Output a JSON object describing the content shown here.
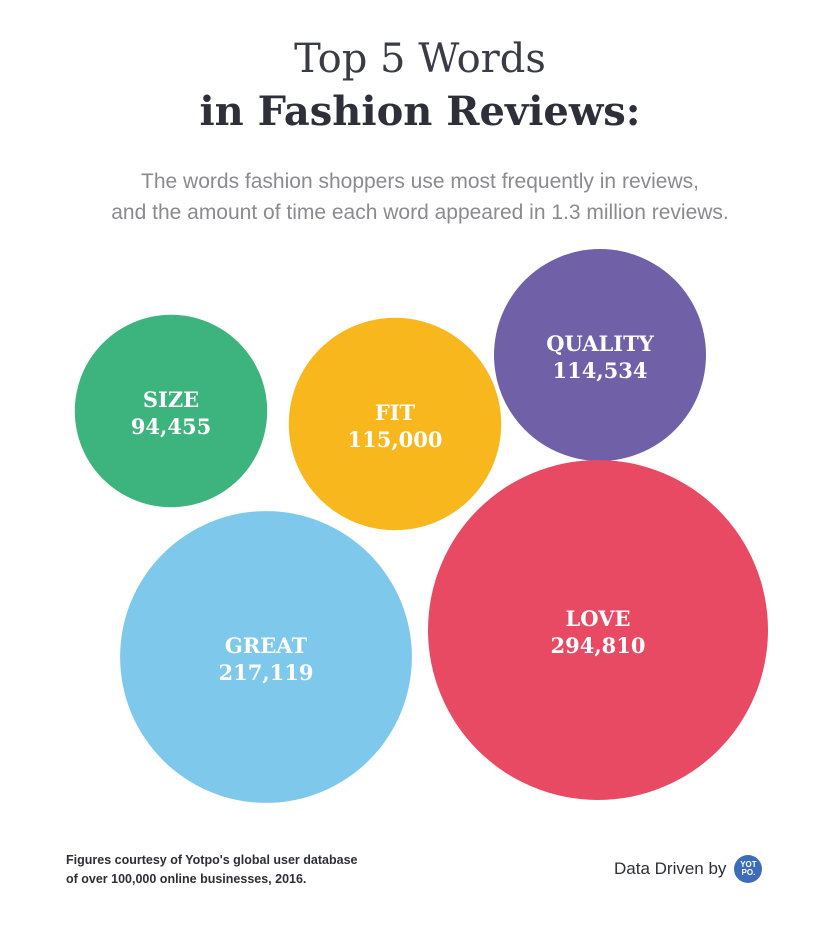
{
  "header": {
    "title_line1": "Top 5 Words",
    "title_line2": "in Fashion Reviews:",
    "subtitle_line1": "The words fashion shoppers use most frequently in reviews,",
    "subtitle_line2": "and the amount of time each word appeared in 1.3 million reviews."
  },
  "chart_data": {
    "type": "bubble",
    "title": "Top 5 Words in Fashion Reviews:",
    "subtitle": "The words fashion shoppers use most frequently in reviews, and the amount of time each word appeared in 1.3 million reviews.",
    "categories": [
      "SIZE",
      "FIT",
      "QUALITY",
      "GREAT",
      "LOVE"
    ],
    "values": [
      94455,
      115000,
      114534,
      217119,
      294810
    ],
    "value_labels": [
      "94,455",
      "115,000",
      "114,534",
      "217,119",
      "294,810"
    ],
    "colors": [
      "#3db37e",
      "#f8b71c",
      "#7060a8",
      "#7ec8ec",
      "#e84a64"
    ],
    "legend": "none",
    "grid": false
  },
  "footer": {
    "note_line1": "Figures courtesy of Yotpo's global user database",
    "note_line2": "of over 100,000 online businesses, 2016.",
    "brand_text": "Data Driven by",
    "logo_line1": "YOT",
    "logo_line2": "PO."
  }
}
